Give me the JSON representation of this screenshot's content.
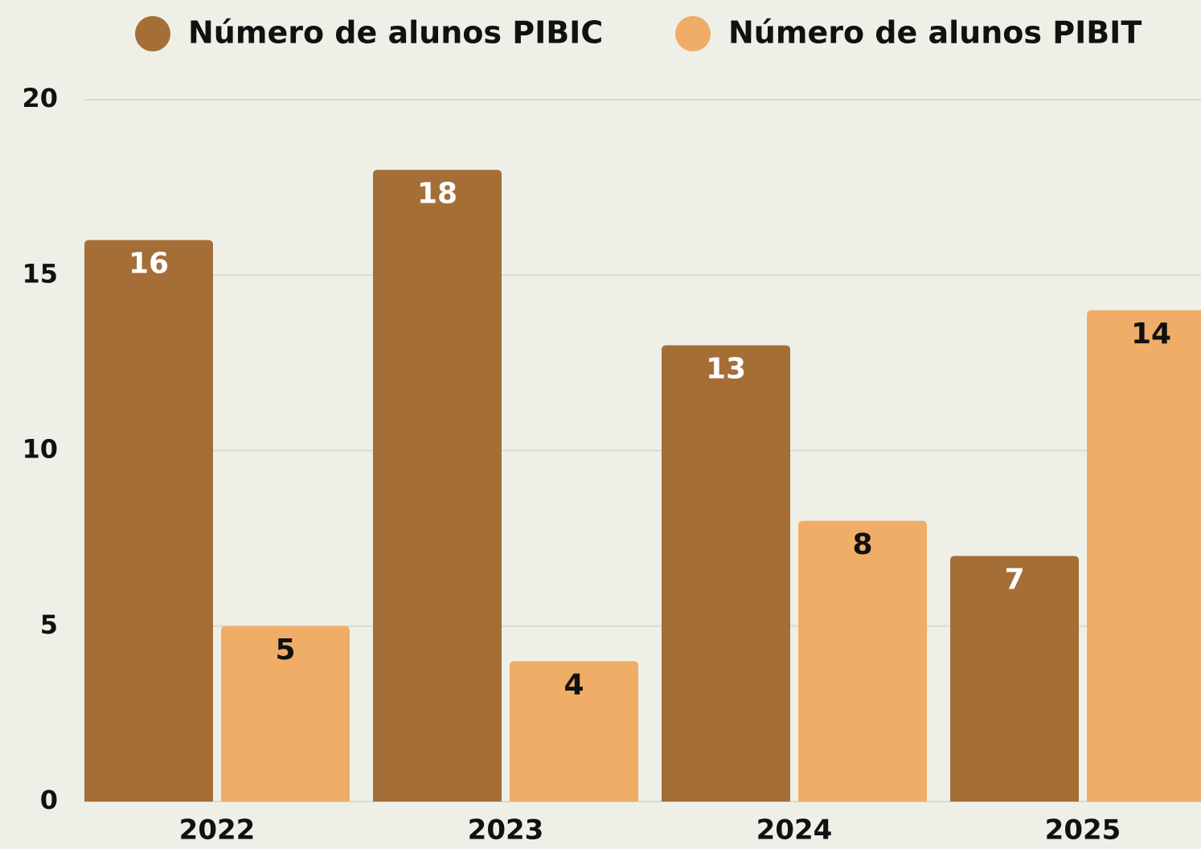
{
  "chart_data": {
    "type": "bar",
    "categories": [
      "2022",
      "2023",
      "2024",
      "2025"
    ],
    "series": [
      {
        "name": "Número de alunos PIBIC",
        "color": "#a56e37",
        "values": [
          16,
          18,
          13,
          7
        ]
      },
      {
        "name": "Número de alunos PIBIT",
        "color": "#efad68",
        "values": [
          5,
          4,
          8,
          14
        ]
      }
    ],
    "ylim": [
      0,
      20
    ],
    "yticks": [
      0,
      5,
      10,
      15,
      20
    ],
    "grid": true,
    "legend": "top"
  }
}
